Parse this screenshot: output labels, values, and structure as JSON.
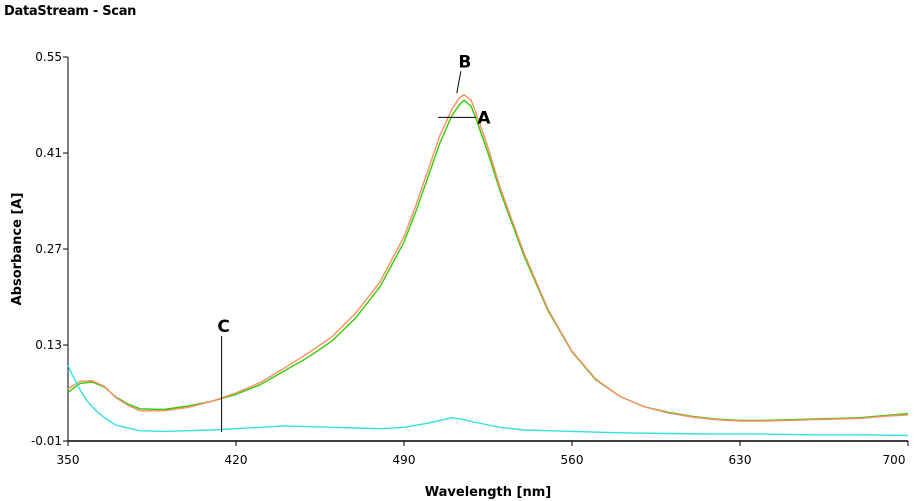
{
  "window": {
    "title": "DataStream - Scan"
  },
  "chart_data": {
    "type": "line",
    "xlabel": "Wavelength [nm]",
    "ylabel": "Absorbance [A]",
    "xlim": [
      350,
      700
    ],
    "ylim": [
      -0.01,
      0.55
    ],
    "x_ticks": [
      "350",
      "420",
      "490",
      "560",
      "630",
      "700"
    ],
    "y_ticks": [
      "-0.01",
      "0.13",
      "0.27",
      "0.41",
      "0.55"
    ],
    "grid": false,
    "series": [
      {
        "name": "A",
        "color": "#33cc00",
        "x": [
          350,
          355,
          360,
          365,
          370,
          375,
          380,
          390,
          400,
          410,
          420,
          430,
          440,
          450,
          460,
          470,
          480,
          490,
          495,
          500,
          505,
          510,
          513,
          515,
          518,
          520,
          525,
          530,
          540,
          550,
          560,
          570,
          580,
          590,
          600,
          610,
          620,
          630,
          640,
          650,
          660,
          670,
          680,
          690,
          700
        ],
        "y": [
          0.061,
          0.074,
          0.076,
          0.069,
          0.054,
          0.044,
          0.037,
          0.036,
          0.041,
          0.048,
          0.058,
          0.072,
          0.092,
          0.112,
          0.136,
          0.17,
          0.215,
          0.28,
          0.325,
          0.375,
          0.425,
          0.465,
          0.48,
          0.487,
          0.478,
          0.46,
          0.41,
          0.355,
          0.26,
          0.18,
          0.12,
          0.079,
          0.055,
          0.04,
          0.032,
          0.026,
          0.022,
          0.02,
          0.02,
          0.021,
          0.022,
          0.023,
          0.024,
          0.027,
          0.03
        ]
      },
      {
        "name": "B",
        "color": "#ff8c66",
        "x": [
          350,
          355,
          360,
          365,
          370,
          375,
          380,
          390,
          400,
          410,
          420,
          430,
          440,
          450,
          460,
          470,
          480,
          490,
          495,
          500,
          505,
          510,
          513,
          515,
          518,
          520,
          525,
          530,
          540,
          550,
          560,
          570,
          580,
          590,
          600,
          610,
          620,
          630,
          640,
          650,
          660,
          670,
          680,
          690,
          700
        ],
        "y": [
          0.066,
          0.077,
          0.078,
          0.07,
          0.053,
          0.042,
          0.034,
          0.034,
          0.039,
          0.048,
          0.06,
          0.075,
          0.096,
          0.118,
          0.142,
          0.177,
          0.222,
          0.288,
          0.334,
          0.385,
          0.436,
          0.474,
          0.49,
          0.495,
          0.487,
          0.468,
          0.418,
          0.36,
          0.264,
          0.182,
          0.121,
          0.08,
          0.055,
          0.04,
          0.031,
          0.025,
          0.021,
          0.019,
          0.019,
          0.02,
          0.021,
          0.022,
          0.023,
          0.026,
          0.028
        ]
      },
      {
        "name": "C",
        "color": "#33e0e0",
        "x": [
          350,
          352,
          355,
          358,
          362,
          366,
          370,
          375,
          380,
          390,
          400,
          410,
          420,
          430,
          440,
          450,
          460,
          470,
          480,
          490,
          500,
          505,
          510,
          515,
          520,
          530,
          540,
          550,
          560,
          580,
          600,
          620,
          640,
          660,
          680,
          700
        ],
        "y": [
          0.1,
          0.085,
          0.065,
          0.048,
          0.033,
          0.022,
          0.013,
          0.009,
          0.005,
          0.004,
          0.005,
          0.006,
          0.008,
          0.01,
          0.012,
          0.011,
          0.01,
          0.009,
          0.008,
          0.01,
          0.016,
          0.02,
          0.024,
          0.021,
          0.017,
          0.01,
          0.006,
          0.005,
          0.004,
          0.002,
          0.001,
          0.0,
          0.0,
          -0.001,
          -0.001,
          -0.002
        ]
      }
    ],
    "annotations": [
      {
        "text": "A",
        "x": 520,
        "y": 0.462
      },
      {
        "text": "B",
        "x": 512,
        "y": 0.497
      },
      {
        "text": "C",
        "x": 414,
        "y": 0.003
      }
    ]
  }
}
